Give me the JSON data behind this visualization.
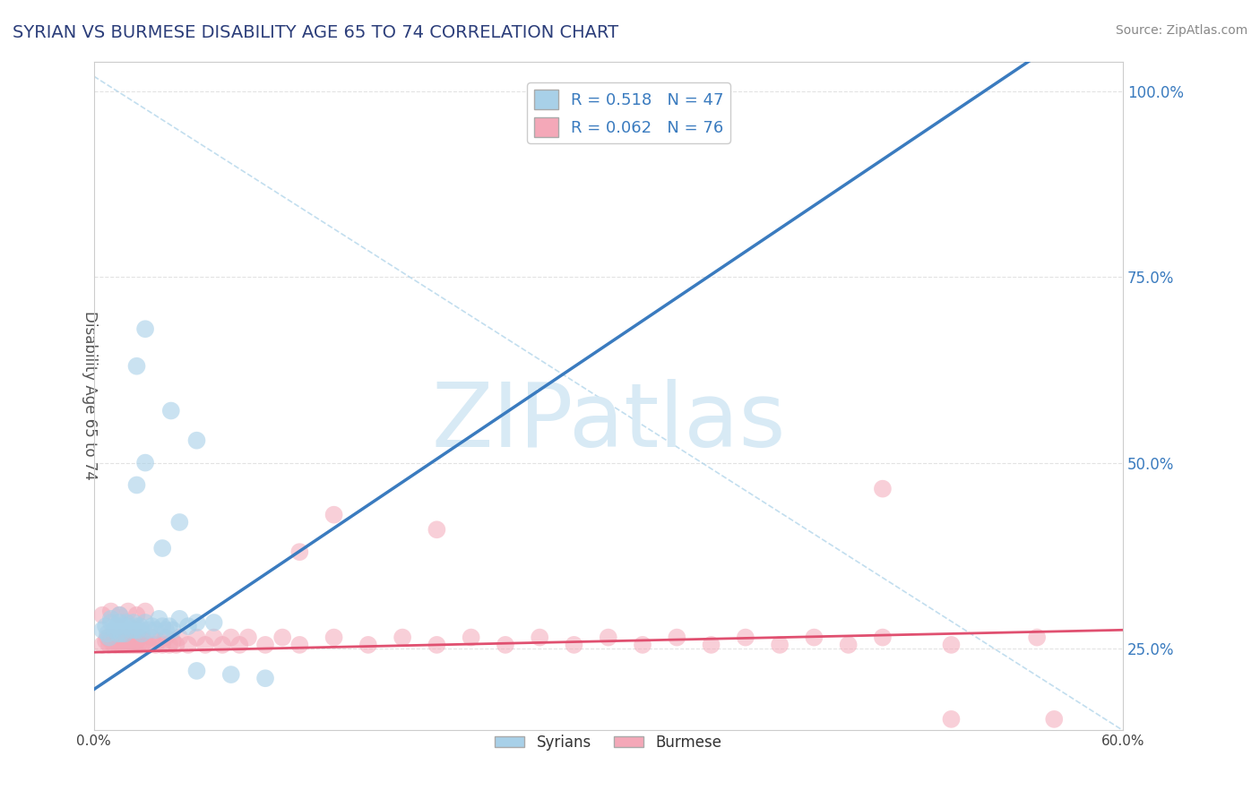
{
  "title": "SYRIAN VS BURMESE DISABILITY AGE 65 TO 74 CORRELATION CHART",
  "source_text": "Source: ZipAtlas.com",
  "ylabel": "Disability Age 65 to 74",
  "xlim": [
    0.0,
    0.6
  ],
  "ylim": [
    0.14,
    1.04
  ],
  "xtick_positions": [
    0.0,
    0.1,
    0.2,
    0.3,
    0.4,
    0.5,
    0.6
  ],
  "xtick_labels": [
    "0.0%",
    "",
    "",
    "",
    "",
    "",
    "60.0%"
  ],
  "ytick_positions": [
    0.25,
    0.5,
    0.75,
    1.0
  ],
  "ytick_labels": [
    "25.0%",
    "50.0%",
    "75.0%",
    "100.0%"
  ],
  "syrian_r": 0.518,
  "syrian_n": 47,
  "burmese_r": 0.062,
  "burmese_n": 76,
  "syrian_color": "#a8d0e8",
  "burmese_color": "#f4a8b8",
  "syrian_line_color": "#3a7bbf",
  "burmese_line_color": "#e05070",
  "ref_line_color": "#a8d0e8",
  "title_color": "#2c3e7a",
  "yaxis_color": "#3a7bbf",
  "title_fontsize": 14,
  "watermark_text": "ZIPatlas",
  "watermark_color": "#d8eaf5",
  "background_color": "#ffffff",
  "grid_color": "#e0e0e0",
  "syrian_line_intercept": 0.195,
  "syrian_line_slope": 1.55,
  "burmese_line_intercept": 0.245,
  "burmese_line_slope": 0.05,
  "syrian_points": [
    [
      0.005,
      0.275
    ],
    [
      0.007,
      0.28
    ],
    [
      0.008,
      0.27
    ],
    [
      0.009,
      0.265
    ],
    [
      0.01,
      0.285
    ],
    [
      0.01,
      0.29
    ],
    [
      0.012,
      0.275
    ],
    [
      0.013,
      0.28
    ],
    [
      0.014,
      0.27
    ],
    [
      0.015,
      0.295
    ],
    [
      0.015,
      0.285
    ],
    [
      0.016,
      0.27
    ],
    [
      0.017,
      0.28
    ],
    [
      0.018,
      0.27
    ],
    [
      0.019,
      0.285
    ],
    [
      0.02,
      0.28
    ],
    [
      0.022,
      0.275
    ],
    [
      0.023,
      0.285
    ],
    [
      0.024,
      0.275
    ],
    [
      0.025,
      0.28
    ],
    [
      0.026,
      0.275
    ],
    [
      0.027,
      0.28
    ],
    [
      0.028,
      0.27
    ],
    [
      0.03,
      0.285
    ],
    [
      0.032,
      0.275
    ],
    [
      0.034,
      0.28
    ],
    [
      0.036,
      0.275
    ],
    [
      0.038,
      0.29
    ],
    [
      0.04,
      0.28
    ],
    [
      0.042,
      0.275
    ],
    [
      0.044,
      0.28
    ],
    [
      0.046,
      0.275
    ],
    [
      0.05,
      0.29
    ],
    [
      0.055,
      0.28
    ],
    [
      0.06,
      0.285
    ],
    [
      0.07,
      0.285
    ],
    [
      0.04,
      0.385
    ],
    [
      0.05,
      0.42
    ],
    [
      0.025,
      0.47
    ],
    [
      0.03,
      0.5
    ],
    [
      0.06,
      0.53
    ],
    [
      0.045,
      0.57
    ],
    [
      0.025,
      0.63
    ],
    [
      0.03,
      0.68
    ],
    [
      0.06,
      0.22
    ],
    [
      0.08,
      0.215
    ],
    [
      0.1,
      0.21
    ]
  ],
  "burmese_points": [
    [
      0.005,
      0.255
    ],
    [
      0.007,
      0.26
    ],
    [
      0.008,
      0.265
    ],
    [
      0.009,
      0.255
    ],
    [
      0.01,
      0.26
    ],
    [
      0.011,
      0.265
    ],
    [
      0.012,
      0.255
    ],
    [
      0.013,
      0.26
    ],
    [
      0.014,
      0.255
    ],
    [
      0.015,
      0.265
    ],
    [
      0.016,
      0.255
    ],
    [
      0.017,
      0.26
    ],
    [
      0.018,
      0.255
    ],
    [
      0.019,
      0.265
    ],
    [
      0.02,
      0.255
    ],
    [
      0.021,
      0.26
    ],
    [
      0.022,
      0.255
    ],
    [
      0.023,
      0.265
    ],
    [
      0.024,
      0.255
    ],
    [
      0.025,
      0.26
    ],
    [
      0.026,
      0.255
    ],
    [
      0.027,
      0.265
    ],
    [
      0.028,
      0.255
    ],
    [
      0.03,
      0.26
    ],
    [
      0.032,
      0.255
    ],
    [
      0.034,
      0.265
    ],
    [
      0.036,
      0.255
    ],
    [
      0.038,
      0.26
    ],
    [
      0.04,
      0.255
    ],
    [
      0.042,
      0.265
    ],
    [
      0.044,
      0.255
    ],
    [
      0.046,
      0.26
    ],
    [
      0.048,
      0.255
    ],
    [
      0.05,
      0.265
    ],
    [
      0.055,
      0.255
    ],
    [
      0.06,
      0.265
    ],
    [
      0.065,
      0.255
    ],
    [
      0.07,
      0.265
    ],
    [
      0.075,
      0.255
    ],
    [
      0.08,
      0.265
    ],
    [
      0.085,
      0.255
    ],
    [
      0.09,
      0.265
    ],
    [
      0.1,
      0.255
    ],
    [
      0.11,
      0.265
    ],
    [
      0.12,
      0.255
    ],
    [
      0.14,
      0.265
    ],
    [
      0.16,
      0.255
    ],
    [
      0.18,
      0.265
    ],
    [
      0.2,
      0.255
    ],
    [
      0.22,
      0.265
    ],
    [
      0.24,
      0.255
    ],
    [
      0.26,
      0.265
    ],
    [
      0.28,
      0.255
    ],
    [
      0.3,
      0.265
    ],
    [
      0.32,
      0.255
    ],
    [
      0.34,
      0.265
    ],
    [
      0.36,
      0.255
    ],
    [
      0.38,
      0.265
    ],
    [
      0.4,
      0.255
    ],
    [
      0.42,
      0.265
    ],
    [
      0.44,
      0.255
    ],
    [
      0.46,
      0.265
    ],
    [
      0.5,
      0.255
    ],
    [
      0.55,
      0.265
    ],
    [
      0.005,
      0.295
    ],
    [
      0.01,
      0.3
    ],
    [
      0.015,
      0.295
    ],
    [
      0.02,
      0.3
    ],
    [
      0.025,
      0.295
    ],
    [
      0.03,
      0.3
    ],
    [
      0.12,
      0.38
    ],
    [
      0.2,
      0.41
    ],
    [
      0.14,
      0.43
    ],
    [
      0.46,
      0.465
    ],
    [
      0.5,
      0.155
    ],
    [
      0.56,
      0.155
    ]
  ]
}
